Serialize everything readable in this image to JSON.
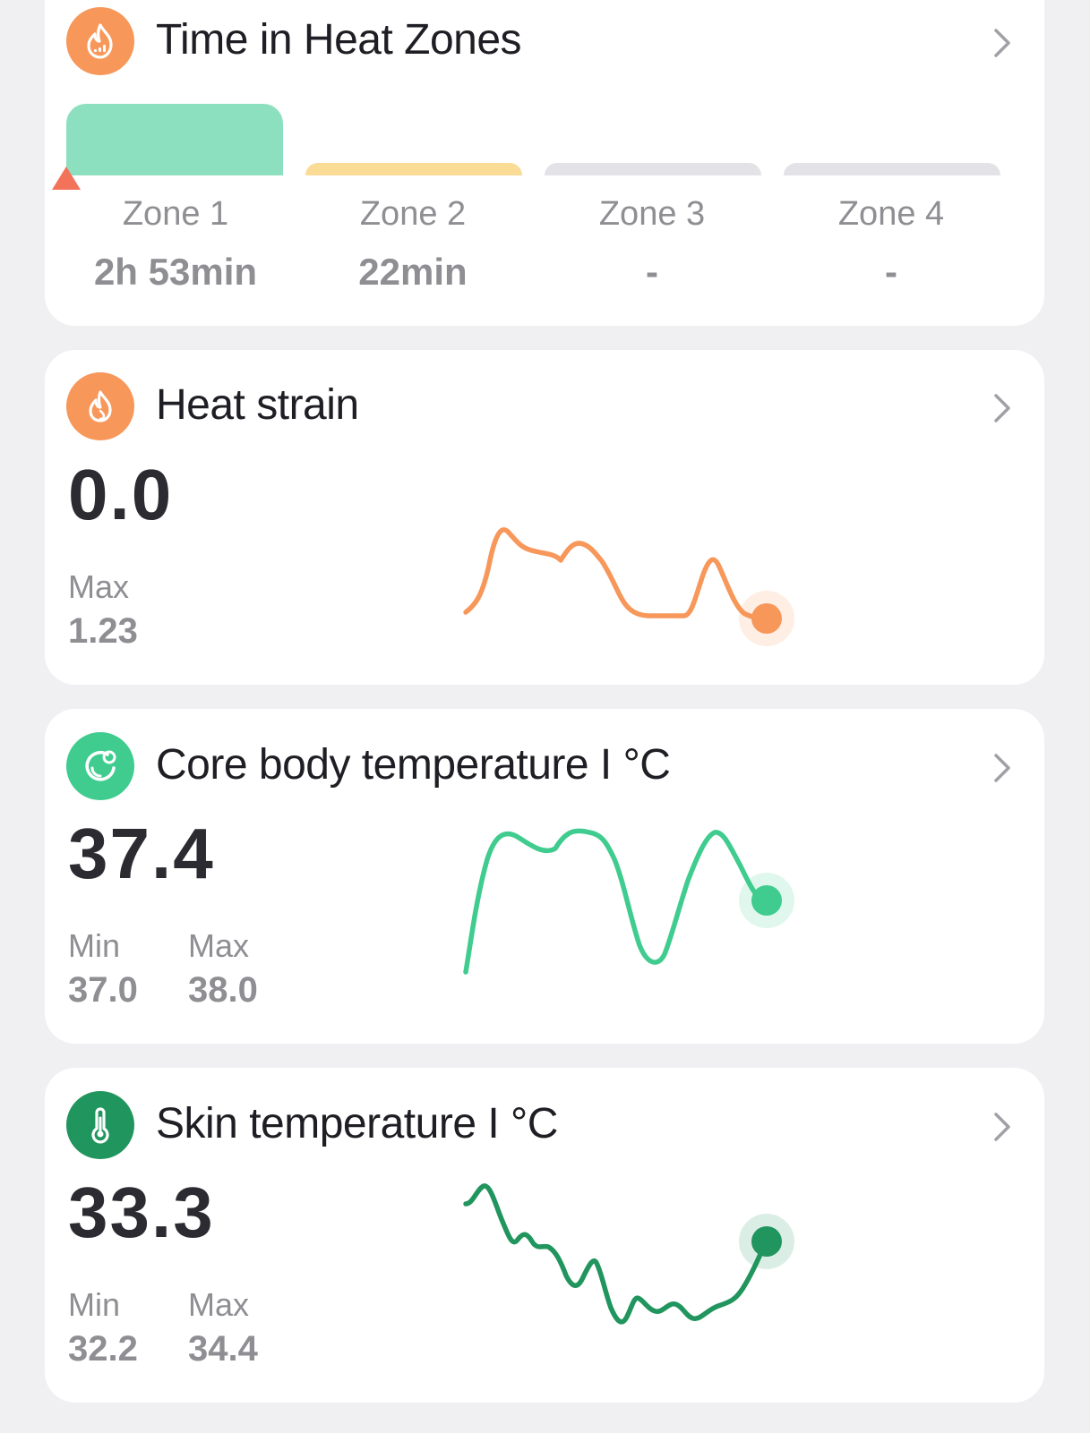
{
  "zones_card": {
    "title": "Time in Heat Zones",
    "icon": "flame-chart-icon",
    "accent": "#f7975a",
    "zones": [
      {
        "name": "Zone 1",
        "value": "2h 53min",
        "color": "#8de0bf",
        "level": 1.0,
        "active": true
      },
      {
        "name": "Zone 2",
        "value": "22min",
        "color": "#fbdc96",
        "level": 0.18,
        "active": false
      },
      {
        "name": "Zone 3",
        "value": "-",
        "color": "#e3e3e7",
        "level": 0.18,
        "active": false
      },
      {
        "name": "Zone 4",
        "value": "-",
        "color": "#e3e3e7",
        "level": 0.18,
        "active": false
      }
    ],
    "marker_color": "#f2735a"
  },
  "strain_card": {
    "title": "Heat strain",
    "icon": "flame-icon",
    "accent": "#f7975a",
    "value": "0.0",
    "max_label": "Max",
    "max_value": "1.23",
    "line_color": "#f7975a"
  },
  "core_card": {
    "title": "Core body temperature I °C",
    "icon": "body-temperature-icon",
    "accent": "#3fcc8e",
    "value": "37.4",
    "min_label": "Min",
    "min_value": "37.0",
    "max_label": "Max",
    "max_value": "38.0",
    "line_color": "#3fcc8e"
  },
  "skin_card": {
    "title": "Skin temperature I °C",
    "icon": "thermometer-icon",
    "accent": "#21955e",
    "value": "33.3",
    "min_label": "Min",
    "min_value": "32.2",
    "max_label": "Max",
    "max_value": "34.4",
    "line_color": "#21955e"
  }
}
